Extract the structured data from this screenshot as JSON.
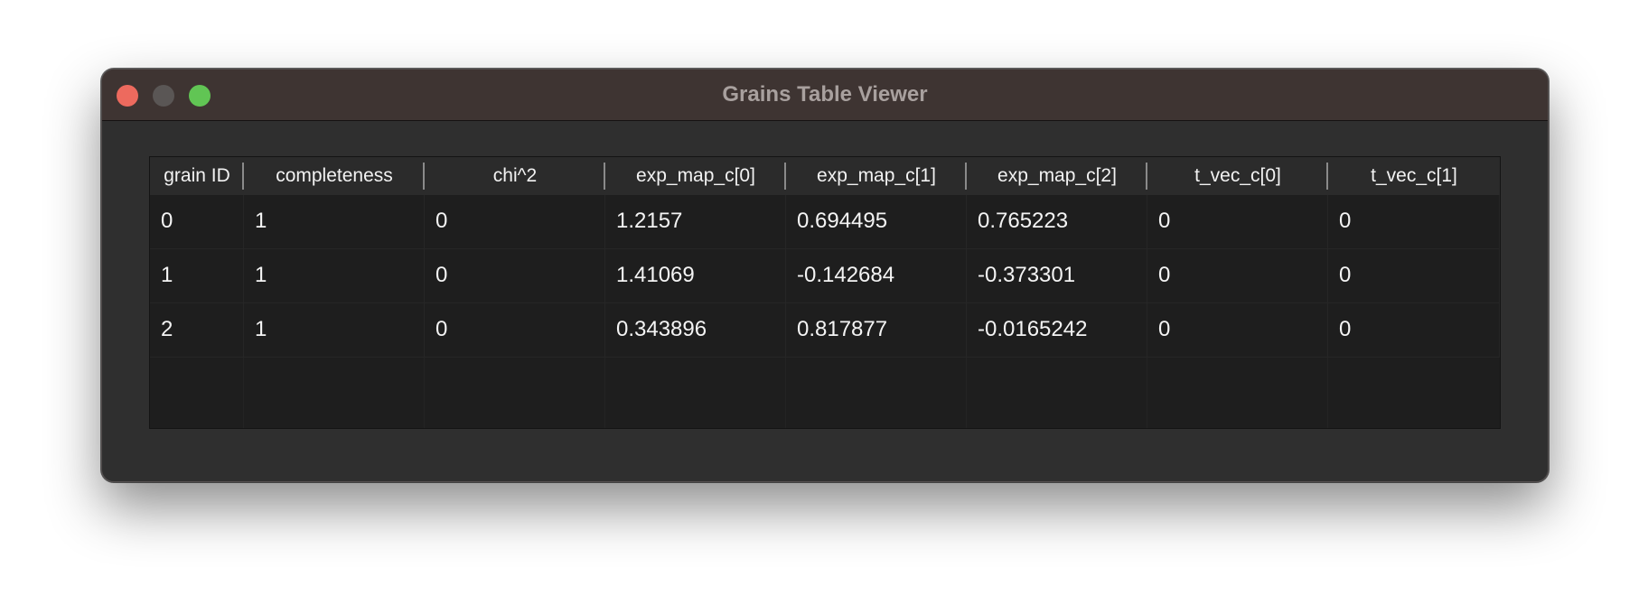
{
  "window": {
    "title": "Grains Table Viewer"
  },
  "table": {
    "columns": [
      "grain ID",
      "completeness",
      "chi^2",
      "exp_map_c[0]",
      "exp_map_c[1]",
      "exp_map_c[2]",
      "t_vec_c[0]",
      "t_vec_c[1]"
    ],
    "rows": [
      [
        "0",
        "1",
        "0",
        "1.2157",
        "0.694495",
        "0.765223",
        "0",
        "0"
      ],
      [
        "1",
        "1",
        "0",
        "1.41069",
        "-0.142684",
        "-0.373301",
        "0",
        "0"
      ],
      [
        "2",
        "1",
        "0",
        "0.343896",
        "0.817877",
        "-0.0165242",
        "0",
        "0"
      ]
    ]
  },
  "colors": {
    "titlebar": "#3e3432",
    "window_bg": "#2f2f2f",
    "table_bg": "#1e1e1e",
    "header_bg": "#2b2b2b",
    "close": "#ed6a5e",
    "minimize": "#5a5655",
    "zoom": "#61c554"
  },
  "icons": {
    "close": "close-icon",
    "minimize": "minimize-icon",
    "zoom": "zoom-icon"
  }
}
